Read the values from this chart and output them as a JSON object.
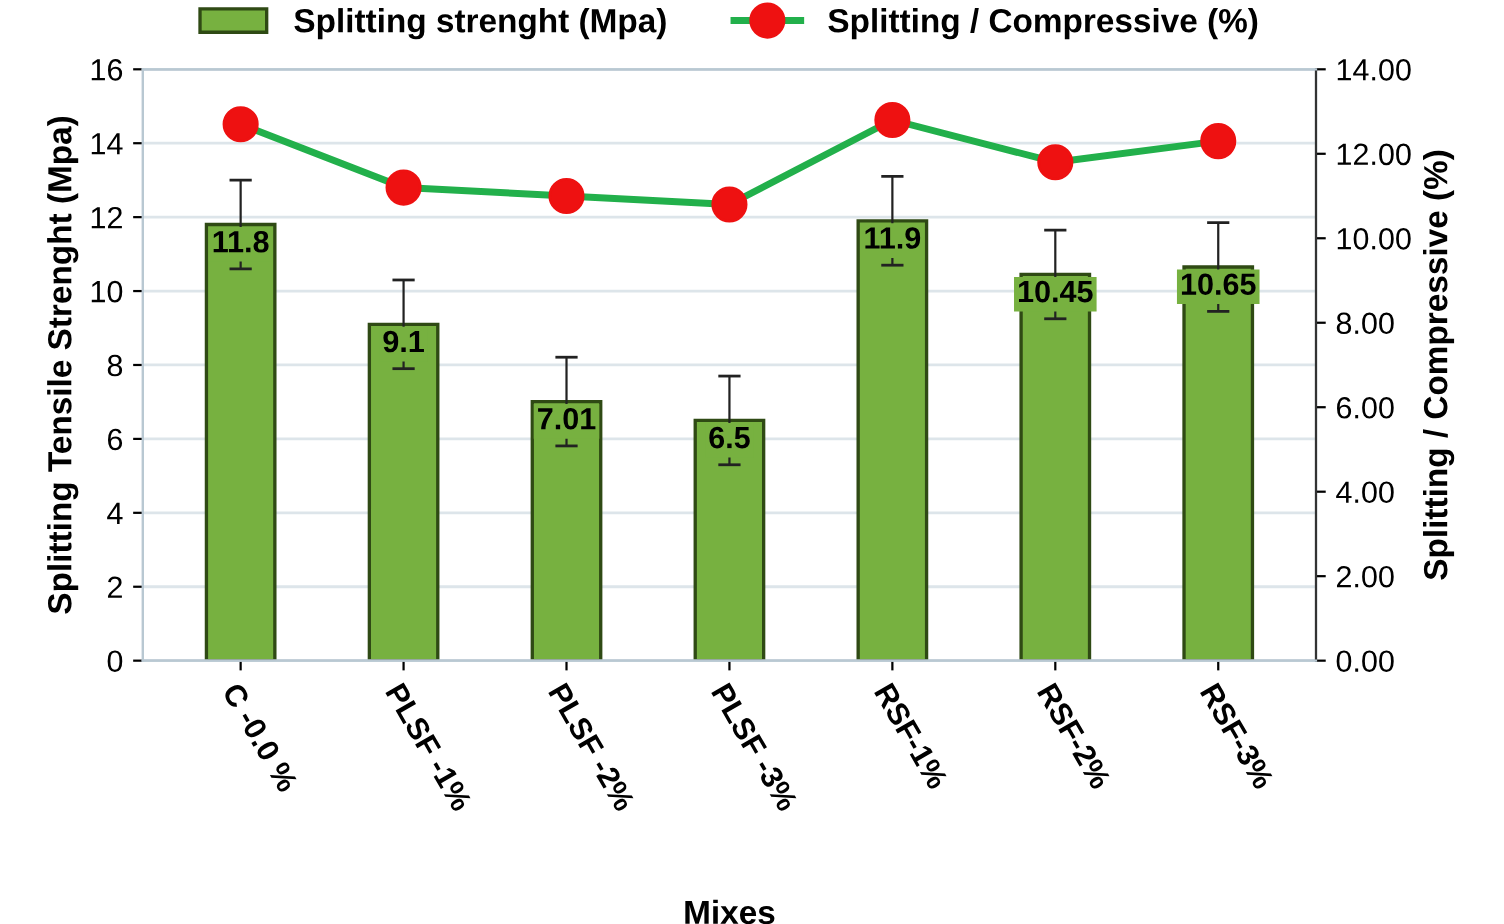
{
  "chart_data": {
    "type": "bar",
    "xlabel": "Mixes",
    "ylabel": "Splitting Tensile Strenght (Mpa)",
    "y2label": "Splitting / Compressive (%)",
    "categories": [
      "C -0.0 %",
      "PLSF -1%",
      "PLSF -2%",
      "PLSF -3%",
      "RSF-1%",
      "RSF-2%",
      "RSF-3%"
    ],
    "series": [
      {
        "name": "Splitting strenght (Mpa)",
        "color": "#77b140",
        "values": [
          11.8,
          9.1,
          7.01,
          6.5,
          11.9,
          10.45,
          10.65
        ],
        "errors": [
          1.2,
          1.2,
          1.2,
          1.2,
          1.2,
          1.2,
          1.2
        ],
        "data_labels": true
      },
      {
        "name": "Splitting / Compressive (%)",
        "type": "line",
        "axis": "y2",
        "color": "#22b04b",
        "marker": "circle",
        "values": [
          12.7,
          11.2,
          11.0,
          10.8,
          12.8,
          11.8,
          12.3
        ]
      }
    ],
    "ylim": [
      0,
      16
    ],
    "yticks": [
      0,
      2,
      4,
      6,
      8,
      10,
      12,
      14,
      16
    ],
    "y2lim": [
      0,
      14
    ],
    "y2ticks": [
      {
        "value": 0,
        "label": "0.00"
      },
      {
        "value": 2,
        "label": "2.00"
      },
      {
        "value": 4,
        "label": "4.00"
      },
      {
        "value": 6,
        "label": "6.00"
      },
      {
        "value": 8,
        "label": "8.00"
      },
      {
        "value": 10,
        "label": "10.00"
      },
      {
        "value": 12,
        "label": "12.00"
      },
      {
        "value": 14,
        "label": "14.00"
      }
    ],
    "grid": "y",
    "legend": "top"
  }
}
